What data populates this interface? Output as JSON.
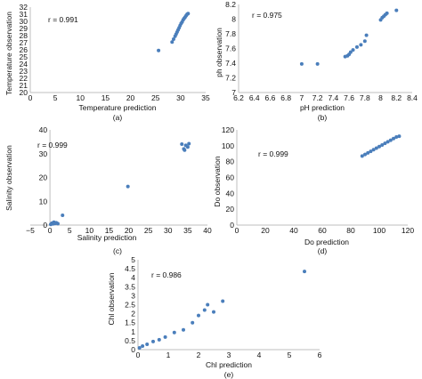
{
  "chart_data": [
    {
      "type": "scatter",
      "panel_label": "(a)",
      "xlabel": "Temperature prediction",
      "ylabel": "Temperature observation",
      "annotation": "r = 0.991",
      "xlim": [
        0,
        35
      ],
      "ylim": [
        20,
        32
      ],
      "xticks": [
        0,
        5,
        10,
        15,
        20,
        25,
        30,
        35
      ],
      "yticks": [
        20,
        21,
        22,
        23,
        24,
        25,
        26,
        27,
        28,
        29,
        30,
        31,
        32
      ],
      "xtick_labels": [
        "0",
        "5",
        "10",
        "15",
        "20",
        "25",
        "30",
        "35"
      ],
      "ytick_labels": [
        "20",
        "21",
        "22",
        "23",
        "24",
        "25",
        "26",
        "27",
        "28",
        "29",
        "30",
        "31",
        "32"
      ],
      "points": [
        [
          25.6,
          25.9
        ],
        [
          28.3,
          27.1
        ],
        [
          28.6,
          27.5
        ],
        [
          28.9,
          27.9
        ],
        [
          29.1,
          28.2
        ],
        [
          29.3,
          28.5
        ],
        [
          29.5,
          28.8
        ],
        [
          29.7,
          29.1
        ],
        [
          29.9,
          29.4
        ],
        [
          30.1,
          29.7
        ],
        [
          30.3,
          29.9
        ],
        [
          30.5,
          30.2
        ],
        [
          30.7,
          30.4
        ],
        [
          30.9,
          30.6
        ],
        [
          31.1,
          30.8
        ],
        [
          31.3,
          31.0
        ],
        [
          31.5,
          31.1
        ]
      ]
    },
    {
      "type": "scatter",
      "panel_label": "(b)",
      "xlabel": "pH prediction",
      "ylabel": "ph observation",
      "annotation": "r = 0.975",
      "xlim": [
        6.2,
        8.4
      ],
      "ylim": [
        7.0,
        8.2
      ],
      "xticks": [
        6.2,
        6.4,
        6.6,
        6.8,
        7.0,
        7.2,
        7.4,
        7.6,
        7.8,
        8.0,
        8.2,
        8.4
      ],
      "yticks": [
        7.0,
        7.2,
        7.4,
        7.6,
        7.8,
        8.0,
        8.2
      ],
      "xtick_labels": [
        "6.2",
        "6.4",
        "6.6",
        "6.8",
        "7",
        "7.2",
        "7.4",
        "7.6",
        "7.8",
        "8",
        "8.2",
        "8.4"
      ],
      "ytick_labels": [
        "7",
        "7.2",
        "7.4",
        "7.6",
        "7.8",
        "8",
        "8.2"
      ],
      "points": [
        [
          7.0,
          7.39
        ],
        [
          7.2,
          7.39
        ],
        [
          7.55,
          7.49
        ],
        [
          7.58,
          7.5
        ],
        [
          7.6,
          7.52
        ],
        [
          7.62,
          7.55
        ],
        [
          7.65,
          7.58
        ],
        [
          7.7,
          7.62
        ],
        [
          7.75,
          7.65
        ],
        [
          7.8,
          7.7
        ],
        [
          7.82,
          7.78
        ],
        [
          8.0,
          7.99
        ],
        [
          8.02,
          8.02
        ],
        [
          8.04,
          8.04
        ],
        [
          8.06,
          8.06
        ],
        [
          8.08,
          8.08
        ],
        [
          8.2,
          8.12
        ]
      ]
    },
    {
      "type": "scatter",
      "panel_label": "(c)",
      "xlabel": "Salinity prediction",
      "ylabel": "Salinity observation",
      "annotation": "r = 0.999",
      "xlim": [
        -5,
        40
      ],
      "ylim": [
        0,
        40
      ],
      "xticks": [
        -5,
        0,
        5,
        10,
        15,
        20,
        25,
        30,
        35,
        40
      ],
      "yticks": [
        0,
        10,
        20,
        30,
        40
      ],
      "xtick_labels": [
        "−5",
        "0",
        "5",
        "10",
        "15",
        "20",
        "25",
        "30",
        "35",
        "40"
      ],
      "ytick_labels": [
        "0",
        "10",
        "20",
        "30",
        "40"
      ],
      "points": [
        [
          0.2,
          0.3
        ],
        [
          0.5,
          0.8
        ],
        [
          0.8,
          0.5
        ],
        [
          1.0,
          1.2
        ],
        [
          1.3,
          0.7
        ],
        [
          1.6,
          1.0
        ],
        [
          2.0,
          0.6
        ],
        [
          3.2,
          4.1
        ],
        [
          19.8,
          16.2
        ],
        [
          33.5,
          34.0
        ],
        [
          34.0,
          32.0
        ],
        [
          34.5,
          33.5
        ],
        [
          35.0,
          32.8
        ],
        [
          35.3,
          34.2
        ],
        [
          34.2,
          31.5
        ]
      ]
    },
    {
      "type": "scatter",
      "panel_label": "(d)",
      "xlabel": "Do prediction",
      "ylabel": "Do observation",
      "annotation": "r = 0.999",
      "xlim": [
        0,
        120
      ],
      "ylim": [
        0,
        120
      ],
      "xticks": [
        0,
        20,
        40,
        60,
        80,
        100,
        120
      ],
      "yticks": [
        0,
        20,
        40,
        60,
        80,
        100,
        120
      ],
      "xtick_labels": [
        "0",
        "20",
        "40",
        "60",
        "80",
        "100",
        "120"
      ],
      "ytick_labels": [
        "0",
        "20",
        "40",
        "60",
        "80",
        "100",
        "120"
      ],
      "points": [
        [
          88,
          87
        ],
        [
          90,
          89
        ],
        [
          92,
          91
        ],
        [
          94,
          93
        ],
        [
          96,
          95
        ],
        [
          98,
          97
        ],
        [
          100,
          99
        ],
        [
          102,
          101
        ],
        [
          104,
          103
        ],
        [
          106,
          105
        ],
        [
          108,
          107
        ],
        [
          110,
          109
        ],
        [
          112,
          111
        ],
        [
          114,
          112
        ]
      ]
    },
    {
      "type": "scatter",
      "panel_label": "(e)",
      "xlabel": "Chl prediction",
      "ylabel": "Chl observation",
      "annotation": "r = 0.986",
      "xlim": [
        0,
        6
      ],
      "ylim": [
        0,
        5
      ],
      "xticks": [
        0,
        1,
        2,
        3,
        4,
        5,
        6
      ],
      "yticks": [
        0,
        0.5,
        1,
        1.5,
        2,
        2.5,
        3,
        3.5,
        4,
        4.5,
        5
      ],
      "xtick_labels": [
        "0",
        "1",
        "2",
        "3",
        "4",
        "5",
        "6"
      ],
      "ytick_labels": [
        "0",
        "0.5",
        "1",
        "1.5",
        "2",
        "2.5",
        "3",
        "3.5",
        "4",
        "4.5",
        "5"
      ],
      "points": [
        [
          0.05,
          0.1
        ],
        [
          0.15,
          0.2
        ],
        [
          0.3,
          0.3
        ],
        [
          0.5,
          0.45
        ],
        [
          0.7,
          0.55
        ],
        [
          0.9,
          0.7
        ],
        [
          1.2,
          0.95
        ],
        [
          1.5,
          1.1
        ],
        [
          1.8,
          1.5
        ],
        [
          2.0,
          1.9
        ],
        [
          2.2,
          2.2
        ],
        [
          2.3,
          2.5
        ],
        [
          2.5,
          2.1
        ],
        [
          2.8,
          2.7
        ],
        [
          5.5,
          4.35
        ]
      ]
    }
  ]
}
